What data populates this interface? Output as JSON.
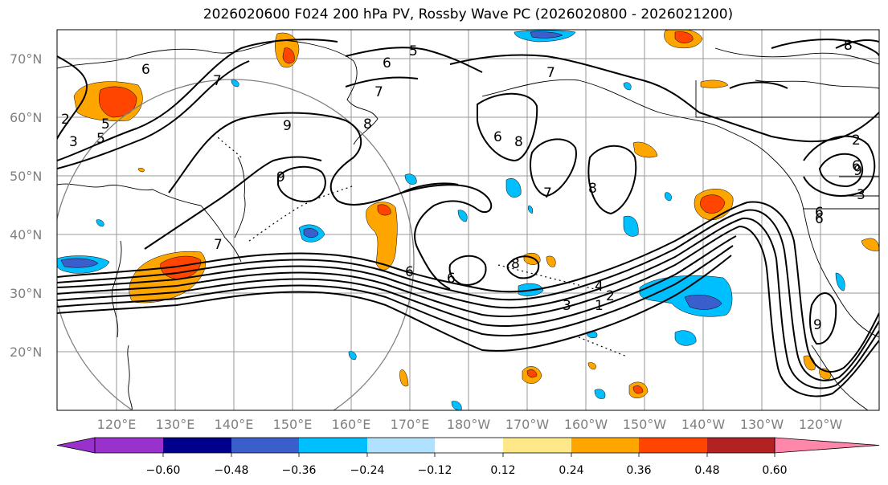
{
  "title": "2026020600 F024 200 hPa PV, Rossby Wave PC (2026020800 - 2026021200)",
  "lat_labels": [
    "70°N",
    "60°N",
    "50°N",
    "40°N",
    "30°N",
    "20°N"
  ],
  "lon_labels": [
    "120°E",
    "130°E",
    "140°E",
    "150°E",
    "160°E",
    "170°E",
    "180°W",
    "170°W",
    "160°W",
    "150°W",
    "140°W",
    "130°W",
    "120°W"
  ],
  "colorbar": {
    "ticks": [
      "−0.60",
      "−0.48",
      "−0.36",
      "−0.24",
      "−0.12",
      "0.12",
      "0.24",
      "0.36",
      "0.48",
      "0.60"
    ],
    "colors": [
      "#9932cc",
      "#00008b",
      "#3a5fcd",
      "#00bfff",
      "#b0e2ff",
      "#ffffff",
      "#ffe88a",
      "#ffa500",
      "#ff4500",
      "#b22222",
      "#ff88aa"
    ]
  },
  "contour_labels": [
    "5",
    "6",
    "7",
    "7",
    "6",
    "7",
    "9",
    "8",
    "9",
    "6",
    "8",
    "7",
    "8",
    "7",
    "8",
    "6",
    "6",
    "9",
    "4",
    "2",
    "3",
    "1",
    "6",
    "2",
    "3",
    "5",
    "2",
    "3",
    "6",
    "5",
    "8",
    "6",
    "9"
  ],
  "shading_colors": {
    "pos_low": "#ffe88a",
    "pos_mid": "#ffa500",
    "pos_high": "#ff4500",
    "neg_low": "#b0e2ff",
    "neg_mid": "#00bfff",
    "neg_high": "#3a5fcd"
  }
}
